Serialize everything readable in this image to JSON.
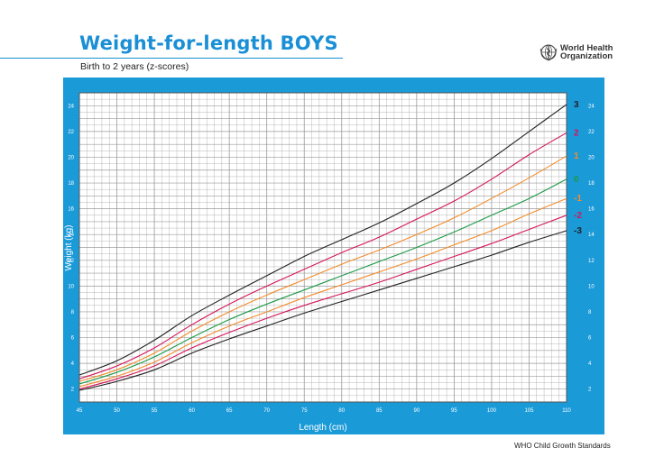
{
  "page": {
    "title": "Weight-for-length BOYS",
    "subtitle": "Birth to 2 years (z-scores)",
    "organization": "World Health Organization",
    "footer": "WHO Child Growth Standards"
  },
  "colors": {
    "panel_blue": "#1b9ad8",
    "grid": "#9a9a9a",
    "title_blue": "#1a8fd6",
    "z_3": "#222222",
    "z_2": "#d4145a",
    "z_1": "#f38b2a",
    "z_0": "#1a9a46",
    "z_m1": "#f38b2a",
    "z_m2": "#d4145a",
    "z_m3": "#222222"
  },
  "chart_data": {
    "type": "line",
    "title": "Weight-for-length BOYS",
    "subtitle": "Birth to 2 years (z-scores)",
    "xlabel": "Length (cm)",
    "ylabel": "Weight (kg)",
    "xlim": [
      45,
      110
    ],
    "ylim": [
      1,
      25
    ],
    "xticks": [
      45,
      50,
      55,
      60,
      65,
      70,
      75,
      80,
      85,
      90,
      95,
      100,
      105,
      110
    ],
    "yticks": [
      2,
      4,
      6,
      8,
      10,
      12,
      14,
      16,
      18,
      20,
      22,
      24
    ],
    "grid": true,
    "x": [
      45,
      50,
      55,
      60,
      65,
      70,
      75,
      80,
      85,
      90,
      95,
      100,
      105,
      110
    ],
    "series": [
      {
        "name": "3",
        "color": "#222222",
        "values": [
          3.1,
          4.2,
          5.8,
          7.7,
          9.3,
          10.8,
          12.3,
          13.6,
          14.9,
          16.4,
          18.0,
          19.9,
          22.0,
          24.1
        ]
      },
      {
        "name": "2",
        "color": "#d4145a",
        "values": [
          2.8,
          3.8,
          5.2,
          7.0,
          8.6,
          10.0,
          11.3,
          12.6,
          13.8,
          15.2,
          16.6,
          18.3,
          20.2,
          21.9
        ]
      },
      {
        "name": "1",
        "color": "#f38b2a",
        "values": [
          2.6,
          3.5,
          4.8,
          6.5,
          8.0,
          9.3,
          10.5,
          11.7,
          12.8,
          14.0,
          15.3,
          16.8,
          18.4,
          20.1
        ]
      },
      {
        "name": "0",
        "color": "#1a9a46",
        "values": [
          2.4,
          3.3,
          4.5,
          6.0,
          7.4,
          8.6,
          9.7,
          10.8,
          11.9,
          13.0,
          14.2,
          15.5,
          16.8,
          18.3
        ]
      },
      {
        "name": "-1",
        "color": "#f38b2a",
        "values": [
          2.2,
          3.0,
          4.1,
          5.6,
          6.9,
          8.0,
          9.1,
          10.1,
          11.1,
          12.1,
          13.2,
          14.3,
          15.6,
          16.8
        ]
      },
      {
        "name": "-2",
        "color": "#d4145a",
        "values": [
          2.0,
          2.8,
          3.8,
          5.2,
          6.4,
          7.5,
          8.5,
          9.4,
          10.3,
          11.3,
          12.3,
          13.3,
          14.4,
          15.5
        ]
      },
      {
        "name": "-3",
        "color": "#222222",
        "values": [
          1.9,
          2.6,
          3.5,
          4.8,
          5.9,
          6.9,
          7.9,
          8.8,
          9.7,
          10.6,
          11.5,
          12.4,
          13.4,
          14.3
        ]
      }
    ]
  }
}
